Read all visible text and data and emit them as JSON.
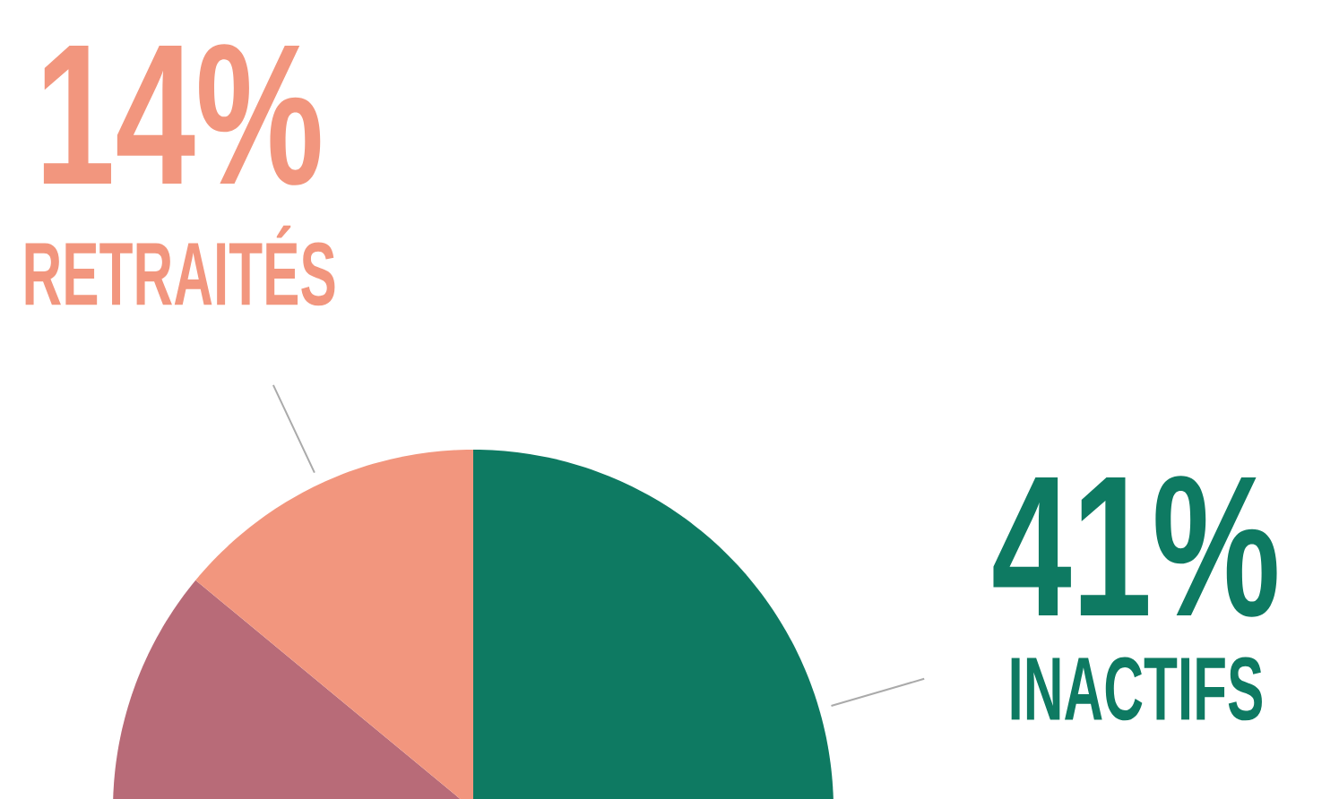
{
  "chart_data": {
    "type": "pie",
    "categories": [
      "INACTIFS",
      null,
      "RETRAITÉS"
    ],
    "values": [
      41,
      45,
      14
    ],
    "colors": [
      "#0e7a62",
      "#b86b78",
      "#f2967e"
    ],
    "value_labels": [
      "41%",
      null,
      "14%"
    ]
  }
}
